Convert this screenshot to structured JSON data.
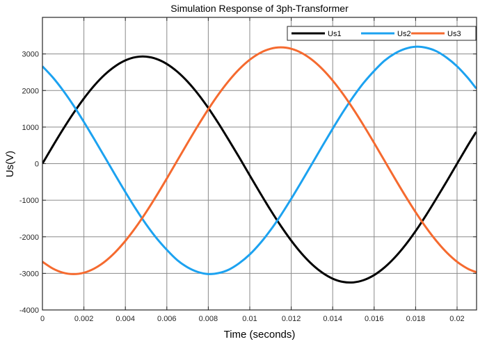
{
  "chart_data": {
    "type": "line",
    "title": "Simulation Response of 3ph-Transformer",
    "xlabel": "Time (seconds)",
    "ylabel": "Us(V)",
    "xlim": [
      0,
      0.02094
    ],
    "ylim": [
      -4000,
      4000
    ],
    "grid": true,
    "legend_position": "top-right",
    "x_ticks": [
      0,
      0.002,
      0.004,
      0.006,
      0.008,
      0.01,
      0.012,
      0.014,
      0.016,
      0.018,
      0.02
    ],
    "x_tick_labels": [
      "0",
      "0.002",
      "0.004",
      "0.006",
      "0.008",
      "0.01",
      "0.012",
      "0.014",
      "0.016",
      "0.018",
      "0.02"
    ],
    "y_ticks": [
      -4000,
      -3000,
      -2000,
      -1000,
      0,
      1000,
      2000,
      3000
    ],
    "y_tick_labels": [
      "-4000",
      "-3000",
      "-2000",
      "-1000",
      "0",
      "1000",
      "2000",
      "3000"
    ],
    "x": [
      0,
      0.0005,
      0.001,
      0.0015,
      0.002,
      0.0025,
      0.003,
      0.0035,
      0.004,
      0.0045,
      0.005,
      0.0055,
      0.006,
      0.0065,
      0.007,
      0.0075,
      0.008,
      0.0085,
      0.009,
      0.0095,
      0.01,
      0.0105,
      0.011,
      0.0115,
      0.012,
      0.0125,
      0.013,
      0.0135,
      0.014,
      0.0145,
      0.015,
      0.0155,
      0.016,
      0.0165,
      0.017,
      0.0175,
      0.018,
      0.0185,
      0.019,
      0.0195,
      0.02,
      0.0205,
      0.0209
    ],
    "series": [
      {
        "name": "Us1",
        "color": "#000000",
        "values": [
          0,
          481,
          946,
          1383,
          1783,
          2136,
          2431,
          2661,
          2824,
          2913,
          2926,
          2863,
          2726,
          2517,
          2243,
          1909,
          1523,
          1094,
          635,
          165,
          -320,
          -801,
          -1266,
          -1703,
          -2103,
          -2456,
          -2751,
          -2981,
          -3144,
          -3233,
          -3246,
          -3183,
          -3046,
          -2837,
          -2563,
          -2229,
          -1843,
          -1414,
          -955,
          -485,
          0,
          481,
          849
        ]
      },
      {
        "name": "Us2",
        "color": "#1ca2f0",
        "values": [
          2662,
          2358,
          1998,
          1589,
          1140,
          669,
          187,
          -299,
          -776,
          -1234,
          -1657,
          -2034,
          -2356,
          -2636,
          -2834,
          -2962,
          -3018,
          -2991,
          -2895,
          -2718,
          -2482,
          -2178,
          -1818,
          -1409,
          -960,
          -489,
          -7,
          479,
          956,
          1414,
          1837,
          2214,
          2536,
          2816,
          3014,
          3142,
          3198,
          3171,
          3075,
          2898,
          2662,
          2358,
          2073
        ]
      },
      {
        "name": "Us3",
        "color": "#f56a2f",
        "values": [
          -2682,
          -2868,
          -2982,
          -3020,
          -2982,
          -2868,
          -2682,
          -2428,
          -2112,
          -1742,
          -1327,
          -878,
          -405,
          80,
          565,
          1038,
          1487,
          1902,
          2272,
          2588,
          2842,
          3028,
          3142,
          3180,
          3142,
          3028,
          2842,
          2588,
          2272,
          1902,
          1487,
          1038,
          565,
          80,
          -405,
          -878,
          -1327,
          -1742,
          -2112,
          -2428,
          -2682,
          -2868,
          -2962
        ]
      }
    ]
  }
}
